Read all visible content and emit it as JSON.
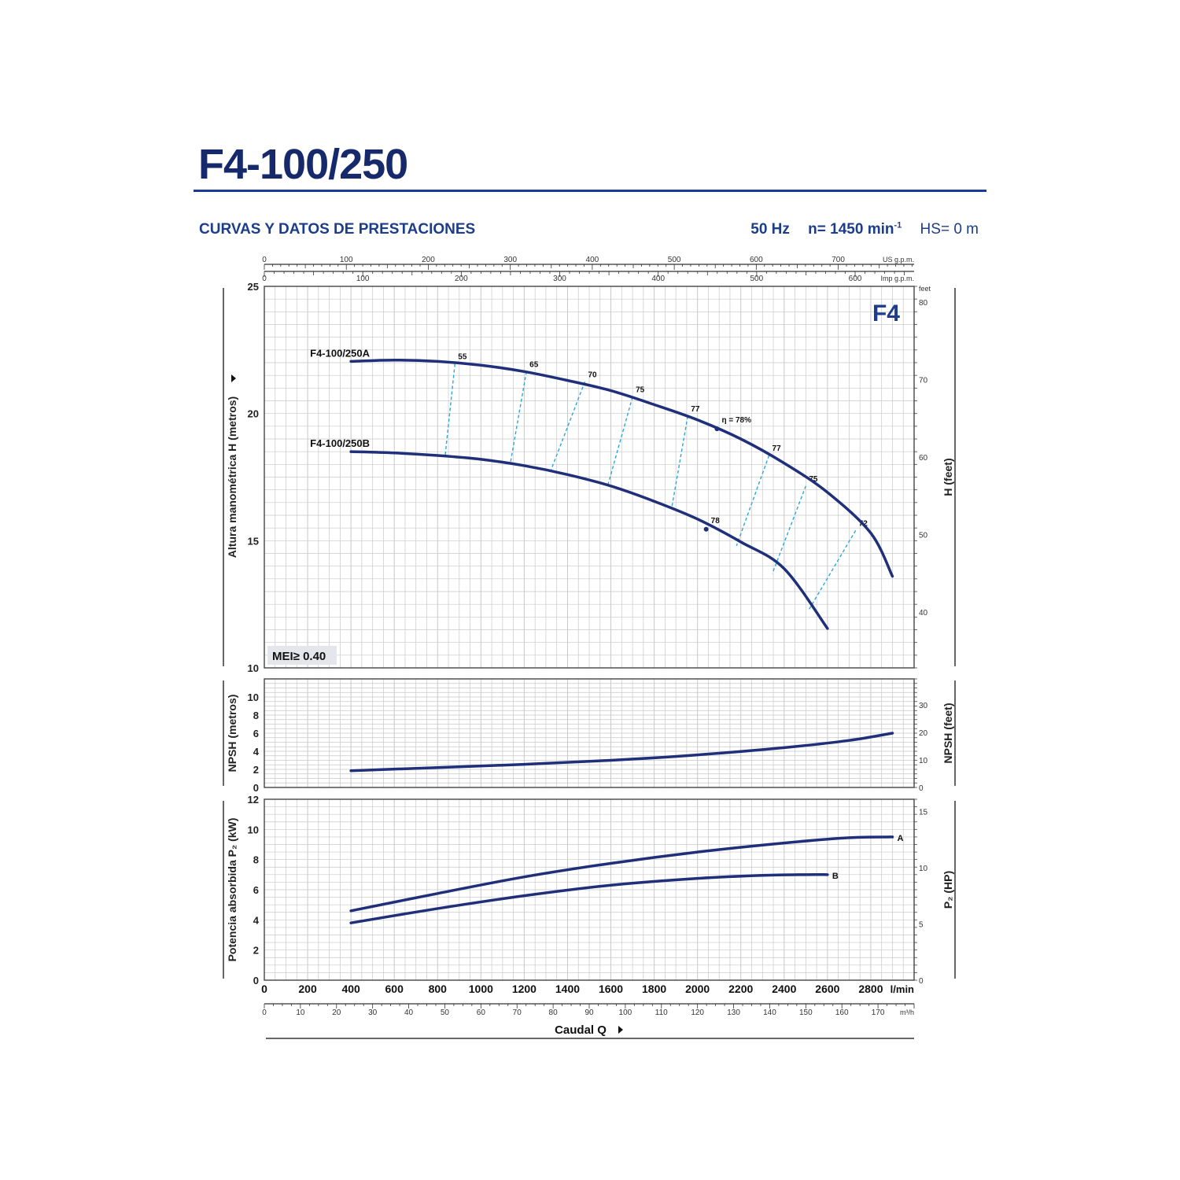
{
  "header": {
    "title": "F4-100/250",
    "subtitle": "CURVAS Y DATOS DE PRESTACIONES",
    "frequency": "50 Hz",
    "speed_prefix": "n= 1450 min",
    "speed_exp": "-1",
    "hs": "HS= 0 m"
  },
  "chart_data": [
    {
      "id": "head",
      "type": "line",
      "badge": "F4",
      "mei_label": "MEI≥ 0.40",
      "ylabel": "Altura manométrica H (metros)",
      "y2label": "H (feet)",
      "y2unit": "feet",
      "xlim": [
        0,
        3000
      ],
      "ylim": [
        10,
        25
      ],
      "yticks": [
        10,
        15,
        20,
        25
      ],
      "y2ticks": [
        40,
        50,
        60,
        70,
        80
      ],
      "grid": true,
      "series": [
        {
          "name": "F4-100/250A",
          "x": [
            400,
            600,
            800,
            1000,
            1200,
            1400,
            1600,
            1800,
            2000,
            2200,
            2400,
            2600,
            2800,
            2900
          ],
          "y": [
            22.05,
            22.1,
            22.05,
            21.9,
            21.65,
            21.3,
            20.9,
            20.35,
            19.75,
            19.0,
            18.05,
            16.9,
            15.3,
            13.6
          ]
        },
        {
          "name": "F4-100/250B",
          "x": [
            400,
            600,
            800,
            1000,
            1200,
            1400,
            1600,
            1800,
            2000,
            2200,
            2400,
            2600
          ],
          "y": [
            18.5,
            18.45,
            18.35,
            18.2,
            17.95,
            17.6,
            17.15,
            16.55,
            15.85,
            14.95,
            13.9,
            11.55
          ]
        }
      ],
      "efficiency_lines": [
        {
          "label": "55",
          "q_top": 880,
          "h_top": 21.95,
          "q_bot": 835,
          "h_bot": 18.35
        },
        {
          "label": "65",
          "q_top": 1210,
          "h_top": 21.65,
          "q_bot": 1135,
          "h_bot": 18.0
        },
        {
          "label": "70",
          "q_top": 1480,
          "h_top": 21.25,
          "q_bot": 1320,
          "h_bot": 17.7
        },
        {
          "label": "75",
          "q_top": 1700,
          "h_top": 20.65,
          "q_bot": 1585,
          "h_bot": 17.15
        },
        {
          "label": "77",
          "q_top": 1955,
          "h_top": 19.9,
          "q_bot": 1880,
          "h_bot": 16.25
        },
        {
          "label": "77",
          "q_top": 2330,
          "h_top": 18.35,
          "q_bot": 2180,
          "h_bot": 14.8
        },
        {
          "label": "75",
          "q_top": 2500,
          "h_top": 17.15,
          "q_bot": 2345,
          "h_bot": 13.7
        },
        {
          "label": "72",
          "q_top": 2730,
          "h_top": 15.4,
          "q_bot": 2515,
          "h_bot": 12.3
        }
      ],
      "efficiency_points": [
        {
          "label": "η = 78%",
          "q": 2090,
          "h": 19.4
        },
        {
          "label": "78",
          "q": 2040,
          "h": 15.45
        }
      ]
    },
    {
      "id": "npsh",
      "type": "line",
      "ylabel": "NPSH (metros)",
      "y2label": "NPSH (feet)",
      "xlim": [
        0,
        3000
      ],
      "ylim": [
        0,
        12
      ],
      "yticks": [
        0,
        2,
        4,
        6,
        8,
        10
      ],
      "y2ticks": [
        0,
        10,
        20,
        30
      ],
      "grid": true,
      "series": [
        {
          "name": "",
          "x": [
            400,
            800,
            1200,
            1600,
            2000,
            2400,
            2700,
            2900
          ],
          "y": [
            1.85,
            2.2,
            2.55,
            3.0,
            3.6,
            4.4,
            5.2,
            6.0
          ]
        }
      ]
    },
    {
      "id": "power",
      "type": "line",
      "ylabel": "Potencia absorbida P₂ (kW)",
      "y2label": "P₂ (HP)",
      "xlim": [
        0,
        3000
      ],
      "ylim": [
        0,
        12
      ],
      "yticks": [
        0,
        2,
        4,
        6,
        8,
        10,
        12
      ],
      "y2ticks": [
        0,
        5,
        10,
        15
      ],
      "grid": true,
      "series": [
        {
          "name": "A",
          "x": [
            400,
            800,
            1200,
            1600,
            2000,
            2400,
            2700,
            2900
          ],
          "y": [
            4.6,
            5.75,
            6.85,
            7.75,
            8.5,
            9.1,
            9.45,
            9.5
          ]
        },
        {
          "name": "B",
          "x": [
            400,
            800,
            1200,
            1600,
            2000,
            2300,
            2500,
            2600
          ],
          "y": [
            3.8,
            4.75,
            5.6,
            6.3,
            6.75,
            6.95,
            7.0,
            7.0
          ]
        }
      ]
    }
  ],
  "axes": {
    "x_lmin": {
      "unit": "l/min",
      "ticks": [
        0,
        200,
        400,
        600,
        800,
        1000,
        1200,
        1400,
        1600,
        1800,
        2000,
        2200,
        2400,
        2600,
        2800
      ]
    },
    "x_m3h": {
      "unit": "m³/h",
      "ticks": [
        0,
        10,
        20,
        30,
        40,
        50,
        60,
        70,
        80,
        90,
        100,
        110,
        120,
        130,
        140,
        150,
        160,
        170
      ]
    },
    "x_usgpm": {
      "unit": "US g.p.m.",
      "ticks": [
        0,
        100,
        200,
        300,
        400,
        500,
        600,
        700
      ]
    },
    "x_impgpm": {
      "unit": "Imp g.p.m.",
      "ticks": [
        0,
        100,
        200,
        300,
        400,
        500,
        600
      ]
    },
    "xlabel": "Caudal Q"
  },
  "colors": {
    "curve": "#1f2f7a",
    "efficiency": "#2aa7de",
    "grid": "#c8c8c8",
    "title": "#162a6b",
    "accent": "#1c3c8c"
  }
}
